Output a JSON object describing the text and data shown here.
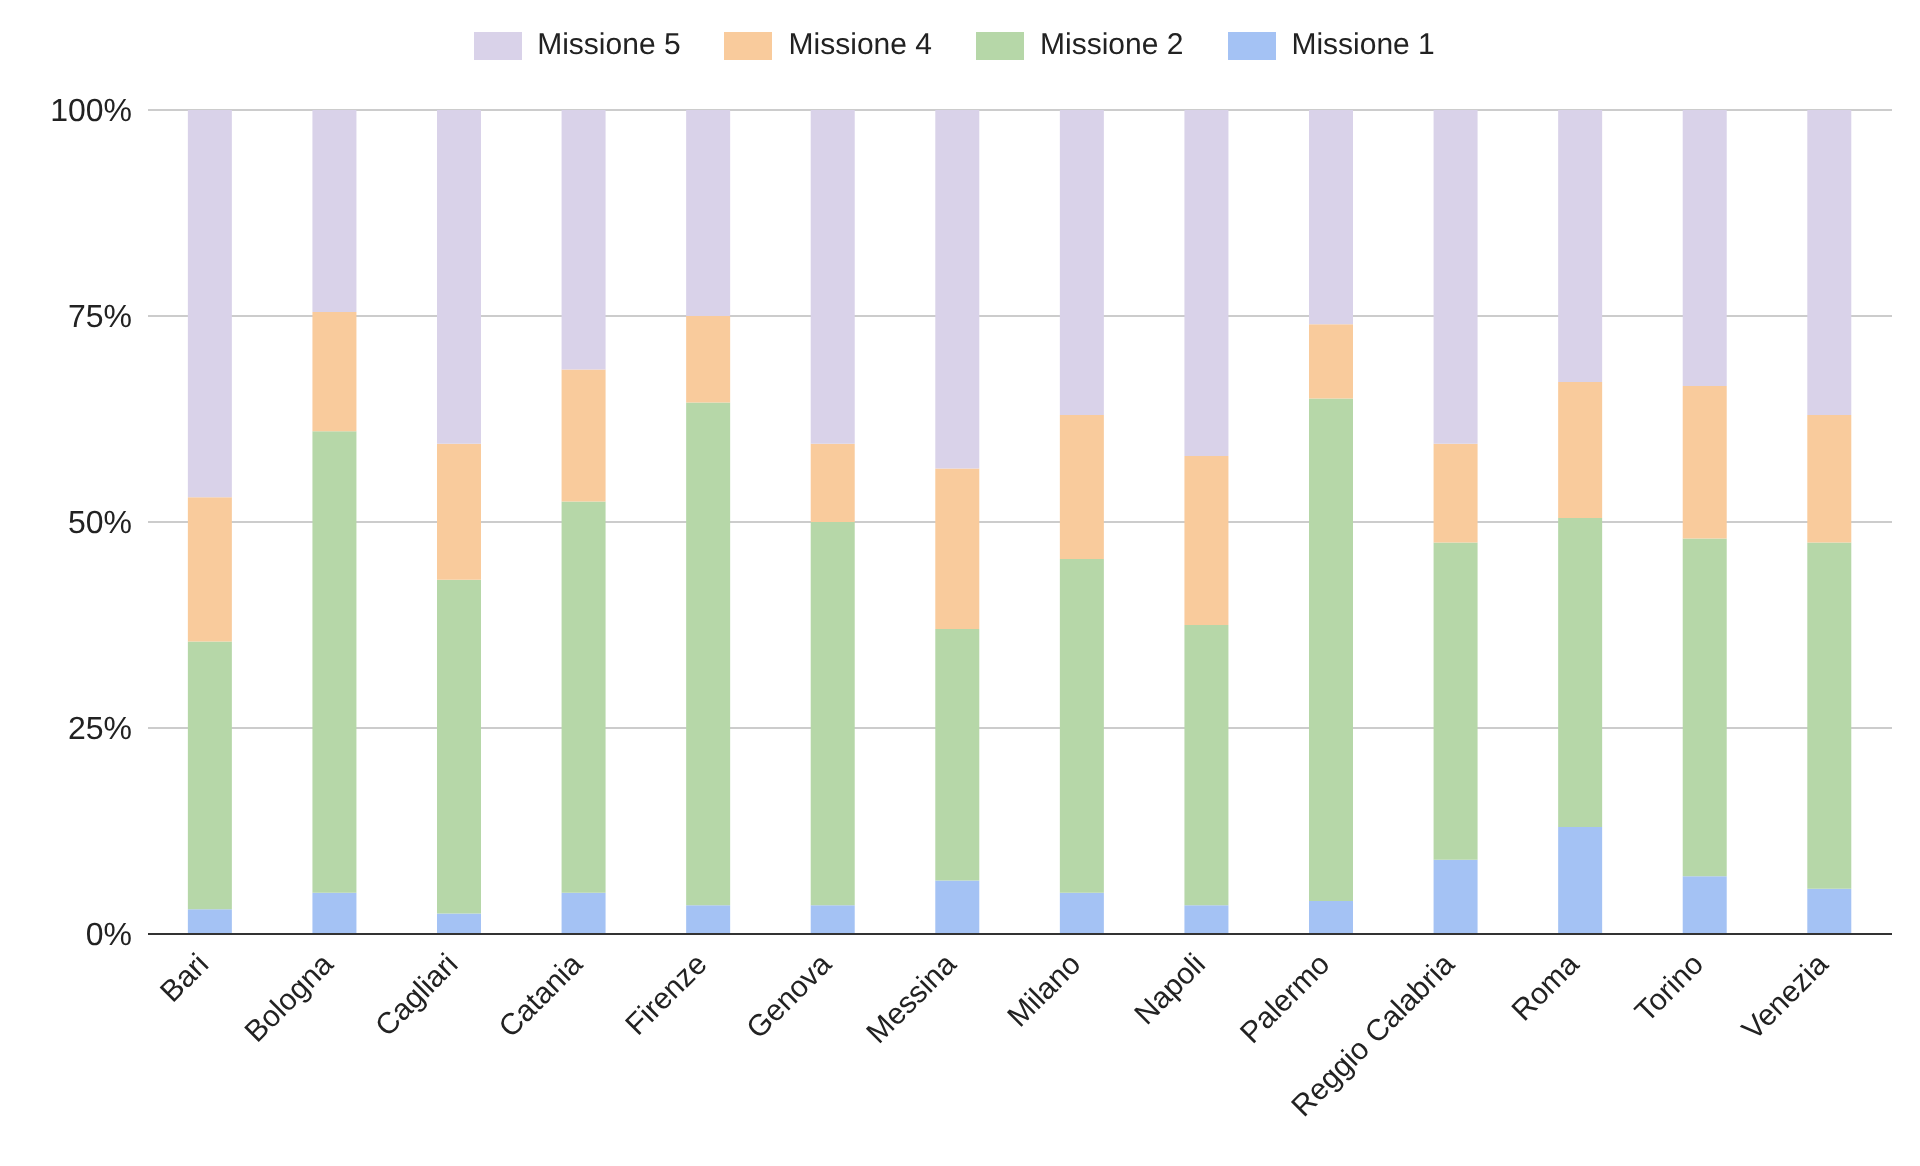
{
  "chart_data": {
    "type": "bar",
    "stacked": true,
    "categories": [
      "Bari",
      "Bologna",
      "Cagliari",
      "Catania",
      "Firenze",
      "Genova",
      "Messina",
      "Milano",
      "Napoli",
      "Palermo",
      "Reggio Calabria",
      "Roma",
      "Torino",
      "Venezia"
    ],
    "series": [
      {
        "name": "Missione 1",
        "color": "#a4c2f4",
        "values": [
          3,
          5,
          2.5,
          5,
          3.5,
          3.5,
          6.5,
          5,
          3.5,
          4,
          9,
          13,
          7,
          5.5
        ]
      },
      {
        "name": "Missione 2",
        "color": "#b6d7a8",
        "values": [
          32.5,
          56,
          40.5,
          47.5,
          61,
          46.5,
          30.5,
          40.5,
          34,
          61,
          38.5,
          37.5,
          41,
          42
        ]
      },
      {
        "name": "Missione 4",
        "color": "#f9cb9c",
        "values": [
          17.5,
          14.5,
          16.5,
          16,
          10.5,
          9.5,
          19.5,
          17.5,
          20.5,
          9,
          12,
          16.5,
          18.5,
          15.5
        ]
      },
      {
        "name": "Missione 5",
        "color": "#d9d2e9",
        "values": [
          47,
          24.5,
          40.5,
          31.5,
          25,
          40.5,
          43.5,
          37,
          42,
          26,
          40.5,
          33,
          33.5,
          37
        ]
      }
    ],
    "ylim": [
      0,
      100
    ],
    "yticks": [
      {
        "value": 0,
        "label": "0%"
      },
      {
        "value": 25,
        "label": "25%"
      },
      {
        "value": 50,
        "label": "50%"
      },
      {
        "value": 75,
        "label": "75%"
      },
      {
        "value": 100,
        "label": "100%"
      }
    ],
    "grid": "y",
    "legend": "top"
  }
}
